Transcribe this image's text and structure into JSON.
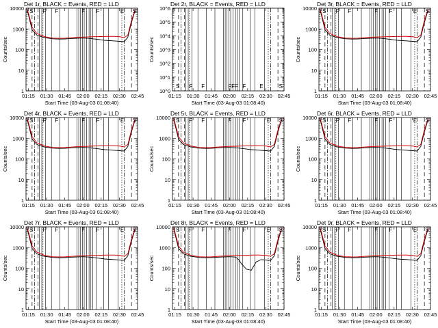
{
  "chart_data": {
    "type": "line",
    "layout": "3x3 grid",
    "x_tick_labels": [
      "01:15",
      "01:30",
      "01:45",
      "02:00",
      "02:15",
      "02:30",
      "02:45"
    ],
    "x_range_minutes": [
      73,
      165
    ],
    "x_tick_minutes": [
      75,
      90,
      105,
      120,
      135,
      150,
      165
    ],
    "y_scale": "log",
    "y_tick_labels": [
      "1",
      "10",
      "100",
      "1000",
      "10000"
    ],
    "y_range": [
      1,
      10000
    ],
    "y_tick_labels_empty": [
      "10^0",
      "10^1",
      "10^2",
      "10^3",
      "10^4",
      "10^5",
      "10^6"
    ],
    "y_range_empty": [
      1,
      1000000
    ],
    "xlabel": "Start Time (03-Aug-03 01:08:40)",
    "ylabel": "Counts/sec",
    "legend": "BLACK = Events, RED = LLD",
    "flags_common": [
      "S",
      "F",
      "F",
      "F",
      "F",
      "E",
      "S"
    ],
    "flags_empty": [
      "S",
      "F",
      "F",
      "FFF",
      "F",
      "E",
      "S"
    ],
    "panels": [
      {
        "title": "Det 1r, BLACK = Events, RED = LLD",
        "empty": false,
        "series": [
          {
            "name": "Events",
            "color": "#000000",
            "x": [
              74,
              78,
              82,
              88,
              95,
              100,
              105,
              110,
              115,
              120,
              125,
              130,
              134,
              138,
              142,
              146,
              150,
              154,
              157,
              160,
              163
            ],
            "y": [
              8000,
              900,
              500,
              380,
              330,
              320,
              325,
              340,
              350,
              360,
              345,
              320,
              300,
              280,
              270,
              260,
              250,
              240,
              400,
              2000,
              8000
            ]
          },
          {
            "name": "LLD",
            "color": "#d40000",
            "x": [
              74,
              78,
              82,
              88,
              95,
              100,
              105,
              110,
              115,
              120,
              125,
              130,
              135,
              140,
              145,
              150,
              154,
              157,
              160,
              163
            ],
            "y": [
              9500,
              1200,
              600,
              420,
              360,
              350,
              355,
              370,
              390,
              400,
              410,
              420,
              425,
              430,
              430,
              420,
              380,
              500,
              2500,
              9000
            ]
          }
        ]
      },
      {
        "title": "Det 2r, BLACK = Events, RED = LLD",
        "empty": true,
        "series": []
      },
      {
        "title": "Det 3r, BLACK = Events, RED = LLD",
        "empty": false,
        "series": [
          {
            "name": "Events",
            "color": "#000000",
            "x": [
              74,
              78,
              82,
              88,
              95,
              100,
              105,
              110,
              115,
              120,
              125,
              130,
              134,
              138,
              142,
              146,
              150,
              154,
              157,
              160,
              163
            ],
            "y": [
              8000,
              900,
              500,
              380,
              330,
              320,
              325,
              340,
              350,
              360,
              345,
              320,
              300,
              280,
              270,
              260,
              250,
              240,
              400,
              2000,
              8000
            ]
          },
          {
            "name": "LLD",
            "color": "#d40000",
            "x": [
              74,
              78,
              82,
              88,
              95,
              100,
              105,
              110,
              115,
              120,
              125,
              130,
              135,
              140,
              145,
              150,
              154,
              157,
              160,
              163
            ],
            "y": [
              9500,
              1200,
              600,
              420,
              360,
              350,
              355,
              370,
              390,
              400,
              410,
              420,
              425,
              430,
              430,
              420,
              380,
              500,
              2500,
              9000
            ]
          }
        ]
      },
      {
        "title": "Det 4r, BLACK = Events, RED = LLD",
        "empty": false,
        "series": [
          {
            "name": "Events",
            "color": "#000000",
            "x": [
              74,
              78,
              82,
              88,
              95,
              100,
              105,
              110,
              115,
              120,
              125,
              130,
              134,
              138,
              142,
              146,
              150,
              154,
              157,
              160,
              163
            ],
            "y": [
              8000,
              900,
              500,
              380,
              330,
              320,
              325,
              340,
              350,
              360,
              345,
              320,
              300,
              280,
              270,
              260,
              250,
              240,
              400,
              2000,
              8000
            ]
          },
          {
            "name": "LLD",
            "color": "#d40000",
            "x": [
              74,
              78,
              82,
              88,
              95,
              100,
              105,
              110,
              115,
              120,
              125,
              130,
              135,
              140,
              145,
              150,
              154,
              157,
              160,
              163
            ],
            "y": [
              9500,
              1200,
              600,
              420,
              360,
              350,
              355,
              370,
              390,
              400,
              410,
              420,
              425,
              430,
              430,
              420,
              380,
              500,
              2500,
              9000
            ]
          }
        ]
      },
      {
        "title": "Det 5r, BLACK = Events, RED = LLD",
        "empty": false,
        "series": [
          {
            "name": "Events",
            "color": "#000000",
            "x": [
              74,
              78,
              82,
              88,
              95,
              100,
              105,
              110,
              115,
              120,
              125,
              130,
              134,
              138,
              142,
              146,
              150,
              154,
              157,
              160,
              163
            ],
            "y": [
              8000,
              900,
              500,
              380,
              330,
              320,
              325,
              340,
              350,
              360,
              345,
              320,
              300,
              280,
              270,
              260,
              250,
              240,
              400,
              2000,
              8000
            ]
          },
          {
            "name": "LLD",
            "color": "#d40000",
            "x": [
              74,
              78,
              82,
              88,
              95,
              100,
              105,
              110,
              115,
              120,
              125,
              130,
              135,
              140,
              145,
              150,
              154,
              157,
              160,
              163
            ],
            "y": [
              9500,
              1200,
              600,
              420,
              360,
              350,
              355,
              370,
              390,
              400,
              410,
              420,
              425,
              430,
              430,
              420,
              380,
              500,
              2500,
              9000
            ]
          }
        ]
      },
      {
        "title": "Det 6r, BLACK = Events, RED = LLD",
        "empty": false,
        "series": [
          {
            "name": "Events",
            "color": "#000000",
            "x": [
              74,
              78,
              82,
              88,
              95,
              100,
              105,
              110,
              115,
              120,
              125,
              130,
              134,
              138,
              142,
              146,
              150,
              154,
              157,
              160,
              163
            ],
            "y": [
              8000,
              900,
              500,
              380,
              330,
              320,
              325,
              340,
              350,
              360,
              345,
              320,
              300,
              280,
              270,
              260,
              250,
              240,
              400,
              2000,
              8000
            ]
          },
          {
            "name": "LLD",
            "color": "#d40000",
            "x": [
              74,
              78,
              82,
              88,
              95,
              100,
              105,
              110,
              115,
              120,
              125,
              130,
              135,
              140,
              145,
              150,
              154,
              157,
              160,
              163
            ],
            "y": [
              9500,
              1200,
              600,
              420,
              360,
              350,
              355,
              370,
              390,
              400,
              410,
              420,
              425,
              430,
              430,
              420,
              380,
              500,
              2500,
              9000
            ]
          }
        ]
      },
      {
        "title": "Det 7r, BLACK = Events, RED = LLD",
        "empty": false,
        "series": [
          {
            "name": "Events",
            "color": "#000000",
            "x": [
              74,
              78,
              82,
              88,
              95,
              100,
              105,
              110,
              115,
              120,
              125,
              130,
              134,
              138,
              142,
              146,
              150,
              154,
              157,
              160,
              163
            ],
            "y": [
              8000,
              900,
              500,
              380,
              330,
              320,
              325,
              340,
              350,
              360,
              345,
              320,
              300,
              280,
              270,
              260,
              250,
              240,
              400,
              2000,
              8000
            ]
          },
          {
            "name": "LLD",
            "color": "#d40000",
            "x": [
              74,
              78,
              82,
              88,
              95,
              100,
              105,
              110,
              115,
              120,
              125,
              130,
              135,
              140,
              145,
              150,
              154,
              157,
              160,
              163
            ],
            "y": [
              9500,
              1200,
              600,
              420,
              360,
              350,
              355,
              370,
              390,
              400,
              410,
              420,
              425,
              430,
              430,
              420,
              380,
              500,
              2500,
              9000
            ]
          }
        ]
      },
      {
        "title": "Det 8r, BLACK = Events, RED = LLD",
        "empty": false,
        "series": [
          {
            "name": "Events",
            "color": "#000000",
            "x": [
              74,
              78,
              82,
              88,
              95,
              100,
              105,
              110,
              115,
              120,
              125,
              128,
              130,
              134,
              138,
              142,
              146,
              150,
              154,
              157,
              160,
              163
            ],
            "y": [
              8000,
              900,
              500,
              380,
              330,
              320,
              325,
              340,
              350,
              360,
              345,
              250,
              160,
              90,
              80,
              200,
              260,
              250,
              240,
              400,
              2000,
              8000
            ]
          },
          {
            "name": "LLD",
            "color": "#d40000",
            "x": [
              74,
              78,
              82,
              88,
              95,
              100,
              105,
              110,
              115,
              120,
              125,
              130,
              135,
              140,
              145,
              150,
              154,
              157,
              160,
              163
            ],
            "y": [
              9500,
              1200,
              600,
              420,
              360,
              350,
              355,
              370,
              390,
              400,
              410,
              420,
              425,
              430,
              430,
              420,
              380,
              500,
              2500,
              9000
            ]
          }
        ]
      },
      {
        "title": "Det 9r, BLACK = Events, RED = LLD",
        "empty": false,
        "series": [
          {
            "name": "Events",
            "color": "#000000",
            "x": [
              74,
              78,
              82,
              88,
              95,
              100,
              105,
              110,
              115,
              120,
              125,
              130,
              134,
              138,
              142,
              146,
              150,
              154,
              157,
              160,
              163
            ],
            "y": [
              8000,
              900,
              500,
              380,
              330,
              320,
              325,
              340,
              350,
              360,
              345,
              320,
              300,
              280,
              270,
              260,
              250,
              240,
              400,
              2000,
              8000
            ]
          },
          {
            "name": "LLD",
            "color": "#d40000",
            "x": [
              74,
              78,
              82,
              88,
              95,
              100,
              105,
              110,
              115,
              120,
              125,
              130,
              135,
              140,
              145,
              150,
              154,
              157,
              160,
              163
            ],
            "y": [
              9500,
              1200,
              600,
              420,
              360,
              350,
              355,
              370,
              390,
              400,
              410,
              420,
              425,
              430,
              430,
              420,
              380,
              500,
              2500,
              9000
            ]
          }
        ]
      }
    ],
    "vertical_markers_minutes": {
      "solid": [
        84,
        86,
        89,
        94,
        101,
        108,
        115,
        116.5,
        118,
        119.5,
        121,
        123,
        125,
        126.5,
        128,
        131,
        137,
        141,
        149
      ],
      "dashed": [
        78,
        83,
        160
      ],
      "dotted": [
        87,
        152
      ],
      "dashdot": [
        80,
        154
      ]
    }
  }
}
